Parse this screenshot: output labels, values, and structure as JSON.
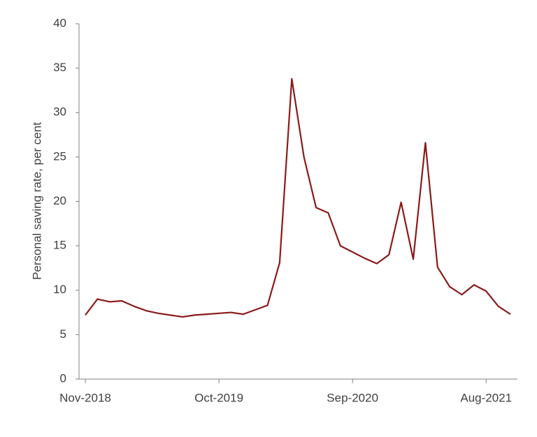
{
  "chart_data": {
    "type": "line",
    "y_label": "Personal saving rate, per cent",
    "categories": [
      "Nov-2018",
      null,
      null,
      null,
      null,
      null,
      null,
      null,
      null,
      null,
      null,
      "Oct-2019",
      null,
      null,
      null,
      null,
      null,
      null,
      null,
      null,
      null,
      null,
      "Sep-2020",
      null,
      null,
      null,
      null,
      null,
      null,
      null,
      null,
      null,
      null,
      "Aug-2021",
      null,
      null
    ],
    "series": [
      {
        "name": "Personal saving rate",
        "color": "#8b1a1a",
        "values": [
          7.2,
          9.0,
          8.7,
          8.8,
          8.2,
          7.7,
          7.4,
          7.2,
          7.0,
          7.2,
          7.3,
          7.4,
          7.5,
          7.3,
          7.8,
          8.3,
          13.1,
          33.8,
          25.0,
          19.3,
          18.7,
          15.0,
          14.3,
          13.6,
          13.0,
          14.0,
          19.9,
          13.5,
          26.6,
          12.6,
          10.4,
          9.5,
          10.6,
          9.9,
          8.2,
          7.3
        ]
      }
    ],
    "ylim": [
      0,
      40
    ],
    "yticks": [
      0,
      5,
      10,
      15,
      20,
      25,
      30,
      35,
      40
    ],
    "grid": false
  }
}
